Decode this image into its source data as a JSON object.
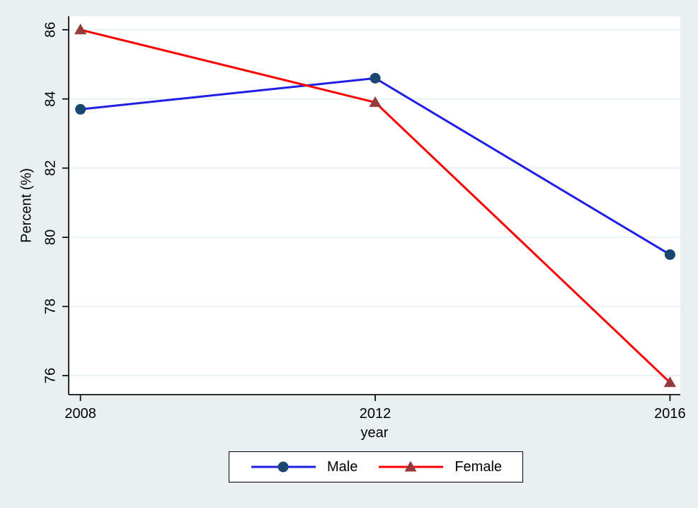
{
  "chart_data": {
    "type": "line",
    "title": "",
    "xlabel": "year",
    "ylabel": "Percent (%)",
    "x": [
      2008,
      2012,
      2016
    ],
    "x_tick_labels": [
      "2008",
      "2012",
      "2016"
    ],
    "y_ticks": [
      76,
      78,
      80,
      82,
      84,
      86
    ],
    "y_tick_labels": [
      "76",
      "78",
      "80",
      "82",
      "84",
      "86"
    ],
    "xlim": [
      2007.84,
      2016.14
    ],
    "ylim": [
      75.45,
      86.39
    ],
    "grid": true,
    "grid_axis": "y",
    "legend_position": "bottom-center",
    "series": [
      {
        "name": "Male",
        "values": [
          83.7,
          84.6,
          79.5
        ],
        "line_color": "#1e1ee6",
        "marker": "circle",
        "marker_color": "#1a476f"
      },
      {
        "name": "Female",
        "values": [
          86.0,
          83.9,
          75.8
        ],
        "line_color": "#fa0000",
        "marker": "triangle",
        "marker_color": "#953b3e"
      }
    ]
  },
  "colors": {
    "page_background": "#e9f0f2",
    "plot_background": "#ffffff",
    "gridline": "#e9f1f5",
    "axis_line": "#111111",
    "text": "#000000",
    "legend_background": "#ffffff",
    "legend_border": "#000000"
  }
}
